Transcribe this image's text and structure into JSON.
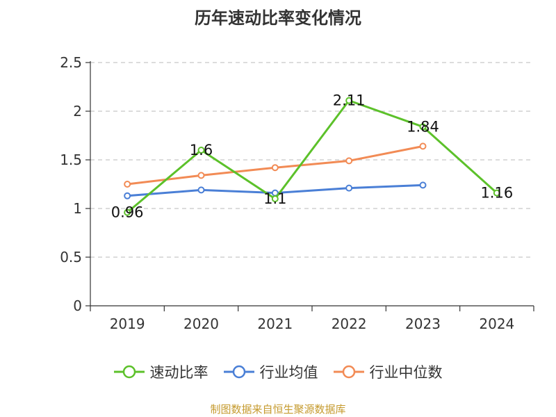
{
  "chart_data": {
    "type": "line",
    "title": "历年速动比率变化情况",
    "categories": [
      "2019",
      "2020",
      "2021",
      "2022",
      "2023",
      "2024"
    ],
    "ylim": [
      0,
      2.5
    ],
    "yticks": [
      0,
      0.5,
      1,
      1.5,
      2,
      2.5
    ],
    "ytick_labels": [
      "0",
      "0.5",
      "1",
      "1.5",
      "2",
      "2.5"
    ],
    "grid": true,
    "legend_position": "bottom",
    "series": [
      {
        "name": "速动比率",
        "color": "#5cc12a",
        "values": [
          0.96,
          1.6,
          1.1,
          2.11,
          1.84,
          1.16
        ],
        "labels": [
          "0.96",
          "1.6",
          "1.1",
          "2.11",
          "1.84",
          "1.16"
        ]
      },
      {
        "name": "行业均值",
        "color": "#4a7fd6",
        "values": [
          1.13,
          1.19,
          1.16,
          1.21,
          1.24,
          null
        ]
      },
      {
        "name": "行业中位数",
        "color": "#f28b55",
        "values": [
          1.25,
          1.34,
          1.42,
          1.49,
          1.64,
          null
        ]
      }
    ],
    "source": "制图数据来自恒生聚源数据库"
  }
}
